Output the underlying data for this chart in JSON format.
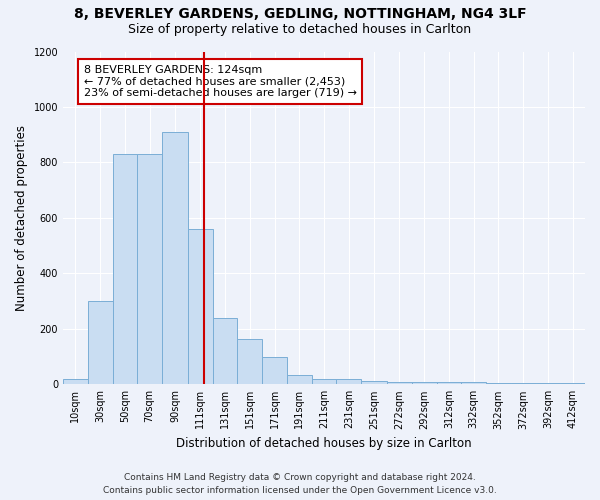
{
  "title1": "8, BEVERLEY GARDENS, GEDLING, NOTTINGHAM, NG4 3LF",
  "title2": "Size of property relative to detached houses in Carlton",
  "xlabel": "Distribution of detached houses by size in Carlton",
  "ylabel": "Number of detached properties",
  "footer1": "Contains HM Land Registry data © Crown copyright and database right 2024.",
  "footer2": "Contains public sector information licensed under the Open Government Licence v3.0.",
  "annotation_line1": "8 BEVERLEY GARDENS: 124sqm",
  "annotation_line2": "← 77% of detached houses are smaller (2,453)",
  "annotation_line3": "23% of semi-detached houses are larger (719) →",
  "property_size": 124,
  "bar_color": "#c9ddf2",
  "bar_edge_color": "#7aaed6",
  "vline_color": "#cc0000",
  "categories": [
    "10sqm",
    "30sqm",
    "50sqm",
    "70sqm",
    "90sqm",
    "111sqm",
    "131sqm",
    "151sqm",
    "171sqm",
    "191sqm",
    "211sqm",
    "231sqm",
    "251sqm",
    "272sqm",
    "292sqm",
    "312sqm",
    "332sqm",
    "352sqm",
    "372sqm",
    "392sqm",
    "412sqm"
  ],
  "values": [
    20,
    300,
    830,
    830,
    910,
    560,
    240,
    165,
    100,
    35,
    20,
    20,
    13,
    10,
    10,
    10,
    10,
    5,
    4,
    4,
    5
  ],
  "bar_edges": [
    10,
    30,
    50,
    70,
    90,
    111,
    131,
    151,
    171,
    191,
    211,
    231,
    251,
    272,
    292,
    312,
    332,
    352,
    372,
    392,
    412
  ],
  "ylim": [
    0,
    1200
  ],
  "yticks": [
    0,
    200,
    400,
    600,
    800,
    1000,
    1200
  ],
  "xlim_left": 10,
  "xlim_right": 432,
  "background_color": "#eef2fa",
  "grid_color": "#ffffff",
  "title1_fontsize": 10,
  "title2_fontsize": 9,
  "axis_label_fontsize": 8.5,
  "tick_fontsize": 7,
  "annotation_fontsize": 8,
  "footer_fontsize": 6.5
}
